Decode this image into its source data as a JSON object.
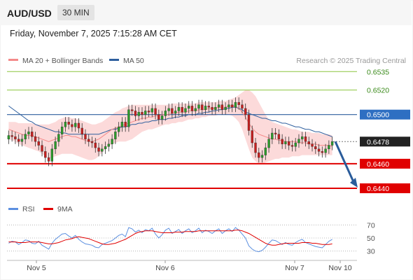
{
  "header": {
    "symbol": "AUD/USD",
    "timeframe": "30 MIN"
  },
  "datetime": "Friday, November 7, 2025 7:15:28 AM CET",
  "legend": {
    "bollinger": "MA 20 + Bollinger Bands",
    "ma50": "MA 50",
    "credit": "Research © 2025 Trading Central"
  },
  "rsi_legend": {
    "rsi": "RSI",
    "ma": "9MA"
  },
  "colors": {
    "bollinger": "#f48a8a",
    "ma50": "#2e5f9e",
    "rsi": "#5b8fe0",
    "rsi_ma": "#e00000",
    "bullish": "#2a9d2a",
    "bearish": "#c81e1e",
    "arrow": "#2a5c9a"
  },
  "chart_data": {
    "type": "candlestick",
    "instrument": "AUD/USD",
    "timeframe": "30 MIN",
    "x_labels": [
      "Nov 5",
      "Nov 6",
      "Nov 7",
      "Nov 10"
    ],
    "price_levels": [
      {
        "value": 0.6535,
        "label": "0.6535",
        "kind": "resistance"
      },
      {
        "value": 0.652,
        "label": "0.6520",
        "kind": "resistance"
      },
      {
        "value": 0.65,
        "label": "0.6500",
        "kind": "pivot"
      },
      {
        "value": 0.6478,
        "label": "0.6478",
        "kind": "last price"
      },
      {
        "value": 0.646,
        "label": "0.6460",
        "kind": "support"
      },
      {
        "value": 0.644,
        "label": "0.6440",
        "kind": "support"
      }
    ],
    "forecast": {
      "from": 0.6478,
      "to": 0.644,
      "direction": "down"
    },
    "price_range": [
      0.6432,
      0.6542
    ],
    "close": [
      0.6483,
      0.6482,
      0.648,
      0.6478,
      0.648,
      0.6484,
      0.6486,
      0.6482,
      0.6478,
      0.6475,
      0.647,
      0.6465,
      0.6462,
      0.6472,
      0.6478,
      0.6484,
      0.649,
      0.6494,
      0.6492,
      0.649,
      0.6493,
      0.6489,
      0.6484,
      0.648,
      0.6478,
      0.6477,
      0.6473,
      0.647,
      0.6472,
      0.6474,
      0.6476,
      0.648,
      0.6486,
      0.649,
      0.6494,
      0.649,
      0.6504,
      0.6503,
      0.6499,
      0.6502,
      0.65,
      0.6503,
      0.6502,
      0.6505,
      0.65,
      0.6496,
      0.6499,
      0.6503,
      0.6505,
      0.6501,
      0.6503,
      0.6506,
      0.6502,
      0.6505,
      0.6507,
      0.6503,
      0.6505,
      0.6508,
      0.6504,
      0.6507,
      0.6506,
      0.6504,
      0.6506,
      0.6508,
      0.6504,
      0.6506,
      0.6508,
      0.6506,
      0.651,
      0.6508,
      0.6505,
      0.65,
      0.6487,
      0.6477,
      0.6469,
      0.6465,
      0.6467,
      0.6473,
      0.648,
      0.6485,
      0.6484,
      0.648,
      0.6476,
      0.6478,
      0.6475,
      0.6474,
      0.6477,
      0.648,
      0.6482,
      0.6478,
      0.6476,
      0.6474,
      0.6472,
      0.647,
      0.6469,
      0.6472,
      0.6475,
      0.6478
    ],
    "bb_mid": [
      0.6488,
      0.6487,
      0.6486,
      0.6485,
      0.6484,
      0.6483,
      0.6483,
      0.6483,
      0.6482,
      0.6481,
      0.648,
      0.6479,
      0.6478,
      0.6479,
      0.648,
      0.6481,
      0.6482,
      0.6483,
      0.6483,
      0.6482,
      0.6482,
      0.6481,
      0.648,
      0.6479,
      0.6478,
      0.6478,
      0.6479,
      0.648,
      0.6482,
      0.6484,
      0.6486,
      0.6488,
      0.6489,
      0.649,
      0.6491,
      0.6492,
      0.6493,
      0.6494,
      0.6495,
      0.6496,
      0.6497,
      0.6497,
      0.6498,
      0.6498,
      0.6499,
      0.6499,
      0.65,
      0.65,
      0.65,
      0.6501,
      0.6501,
      0.6502,
      0.6502,
      0.6502,
      0.6503,
      0.6503,
      0.6503,
      0.6504,
      0.6504,
      0.6504,
      0.6505,
      0.6505,
      0.6505,
      0.6506,
      0.6506,
      0.6506,
      0.6507,
      0.6507,
      0.6507,
      0.6505,
      0.6502,
      0.6498,
      0.6493,
      0.6489,
      0.6486,
      0.6484,
      0.6483,
      0.6482,
      0.6481,
      0.648,
      0.648,
      0.6479,
      0.6479,
      0.6478,
      0.6478,
      0.6478,
      0.6478,
      0.6477,
      0.6477,
      0.6477,
      0.6476,
      0.6476,
      0.6476,
      0.6475,
      0.6475,
      0.6475,
      0.6475,
      0.6474
    ],
    "bb_upper": [
      0.6494,
      0.6494,
      0.6494,
      0.6493,
      0.6493,
      0.6493,
      0.6493,
      0.6493,
      0.6492,
      0.6492,
      0.6492,
      0.6492,
      0.6492,
      0.6493,
      0.6494,
      0.6496,
      0.6497,
      0.6498,
      0.6498,
      0.6497,
      0.6497,
      0.6496,
      0.6495,
      0.6494,
      0.6493,
      0.6492,
      0.6492,
      0.6493,
      0.6494,
      0.6496,
      0.6498,
      0.65,
      0.6502,
      0.6503,
      0.6505,
      0.6506,
      0.6507,
      0.6508,
      0.6508,
      0.6508,
      0.6508,
      0.6508,
      0.6508,
      0.6508,
      0.6508,
      0.6508,
      0.6508,
      0.6508,
      0.6508,
      0.6509,
      0.6509,
      0.6509,
      0.6509,
      0.6509,
      0.6509,
      0.6509,
      0.6509,
      0.651,
      0.651,
      0.651,
      0.651,
      0.651,
      0.651,
      0.6511,
      0.6511,
      0.6511,
      0.6512,
      0.6513,
      0.6514,
      0.6516,
      0.6518,
      0.652,
      0.652,
      0.6518,
      0.6515,
      0.651,
      0.6505,
      0.65,
      0.6496,
      0.6494,
      0.6493,
      0.6492,
      0.6491,
      0.649,
      0.6489,
      0.6488,
      0.6488,
      0.6487,
      0.6486,
      0.6486,
      0.6486,
      0.6485,
      0.6485,
      0.6485,
      0.6484,
      0.6484,
      0.6484,
      0.6483
    ],
    "bb_lower": [
      0.648,
      0.6479,
      0.6478,
      0.6476,
      0.6475,
      0.6474,
      0.6473,
      0.6472,
      0.6471,
      0.647,
      0.6468,
      0.6466,
      0.6464,
      0.6465,
      0.6466,
      0.6467,
      0.6468,
      0.6468,
      0.6468,
      0.6468,
      0.6467,
      0.6466,
      0.6465,
      0.6464,
      0.6463,
      0.6463,
      0.6464,
      0.6466,
      0.6469,
      0.6472,
      0.6474,
      0.6476,
      0.6477,
      0.6478,
      0.6478,
      0.6478,
      0.6479,
      0.648,
      0.6482,
      0.6484,
      0.6486,
      0.6487,
      0.6488,
      0.6488,
      0.6489,
      0.649,
      0.6491,
      0.6492,
      0.6492,
      0.6493,
      0.6493,
      0.6494,
      0.6494,
      0.6495,
      0.6496,
      0.6496,
      0.6497,
      0.6497,
      0.6498,
      0.6498,
      0.6499,
      0.6499,
      0.6499,
      0.65,
      0.65,
      0.65,
      0.65,
      0.6499,
      0.6497,
      0.6494,
      0.6488,
      0.648,
      0.6472,
      0.6465,
      0.6462,
      0.646,
      0.646,
      0.6461,
      0.6462,
      0.6463,
      0.6464,
      0.6464,
      0.6465,
      0.6465,
      0.6465,
      0.6466,
      0.6466,
      0.6466,
      0.6467,
      0.6467,
      0.6467,
      0.6467,
      0.6467,
      0.6467,
      0.6467,
      0.6467,
      0.6467,
      0.6467
    ],
    "ma50": [
      0.6507,
      0.6505,
      0.6503,
      0.6501,
      0.6499,
      0.6497,
      0.6495,
      0.6494,
      0.6492,
      0.6491,
      0.649,
      0.6489,
      0.6488,
      0.6487,
      0.6486,
      0.6486,
      0.6485,
      0.6485,
      0.6484,
      0.6484,
      0.6484,
      0.6484,
      0.6484,
      0.6484,
      0.6484,
      0.6484,
      0.6484,
      0.6484,
      0.6485,
      0.6486,
      0.6487,
      0.6488,
      0.6488,
      0.6489,
      0.649,
      0.649,
      0.6491,
      0.6492,
      0.6492,
      0.6493,
      0.6493,
      0.6494,
      0.6494,
      0.6495,
      0.6495,
      0.6496,
      0.6496,
      0.6496,
      0.6497,
      0.6497,
      0.6498,
      0.6498,
      0.6499,
      0.6499,
      0.65,
      0.65,
      0.65,
      0.6501,
      0.6501,
      0.6502,
      0.6502,
      0.6503,
      0.6503,
      0.6504,
      0.6504,
      0.6505,
      0.6505,
      0.6506,
      0.6506,
      0.6505,
      0.6504,
      0.6502,
      0.6501,
      0.65,
      0.6499,
      0.6498,
      0.6497,
      0.6497,
      0.6496,
      0.6495,
      0.6495,
      0.6494,
      0.6493,
      0.6493,
      0.6492,
      0.6491,
      0.649,
      0.649,
      0.6489,
      0.6488,
      0.6488,
      0.6487,
      0.6486,
      0.6486,
      0.6485,
      0.6484,
      0.6483,
      0.6482
    ],
    "rsi": {
      "axis_ticks": [
        70,
        50,
        30
      ],
      "range": [
        20,
        80
      ],
      "values": [
        42,
        45,
        44,
        40,
        43,
        47,
        46,
        42,
        41,
        45,
        39,
        36,
        33,
        42,
        48,
        52,
        56,
        57,
        53,
        50,
        54,
        48,
        44,
        41,
        40,
        39,
        36,
        35,
        40,
        42,
        44,
        46,
        50,
        54,
        56,
        52,
        66,
        64,
        59,
        62,
        58,
        63,
        61,
        65,
        56,
        50,
        55,
        62,
        65,
        57,
        60,
        63,
        57,
        61,
        64,
        58,
        61,
        65,
        58,
        62,
        60,
        57,
        61,
        64,
        57,
        61,
        64,
        60,
        66,
        62,
        56,
        50,
        38,
        33,
        30,
        29,
        31,
        36,
        42,
        47,
        46,
        43,
        40,
        43,
        40,
        39,
        43,
        46,
        48,
        43,
        41,
        39,
        37,
        36,
        35,
        40,
        45,
        48
      ],
      "ma": [
        44,
        44,
        44,
        43,
        43,
        43,
        44,
        44,
        44,
        44,
        43,
        42,
        41,
        41,
        42,
        43,
        45,
        47,
        48,
        49,
        51,
        52,
        51,
        50,
        49,
        47,
        45,
        43,
        41,
        40,
        40,
        41,
        42,
        44,
        46,
        48,
        51,
        54,
        57,
        59,
        60,
        61,
        61,
        61,
        60,
        59,
        58,
        58,
        58,
        58,
        59,
        59,
        59,
        60,
        60,
        60,
        60,
        61,
        61,
        61,
        61,
        61,
        61,
        61,
        61,
        61,
        61,
        61,
        62,
        62,
        61,
        59,
        57,
        54,
        51,
        48,
        45,
        42,
        40,
        39,
        39,
        40,
        41,
        42,
        42,
        42,
        42,
        42,
        43,
        43,
        43,
        42,
        42,
        41,
        40,
        40,
        40,
        41
      ]
    }
  }
}
